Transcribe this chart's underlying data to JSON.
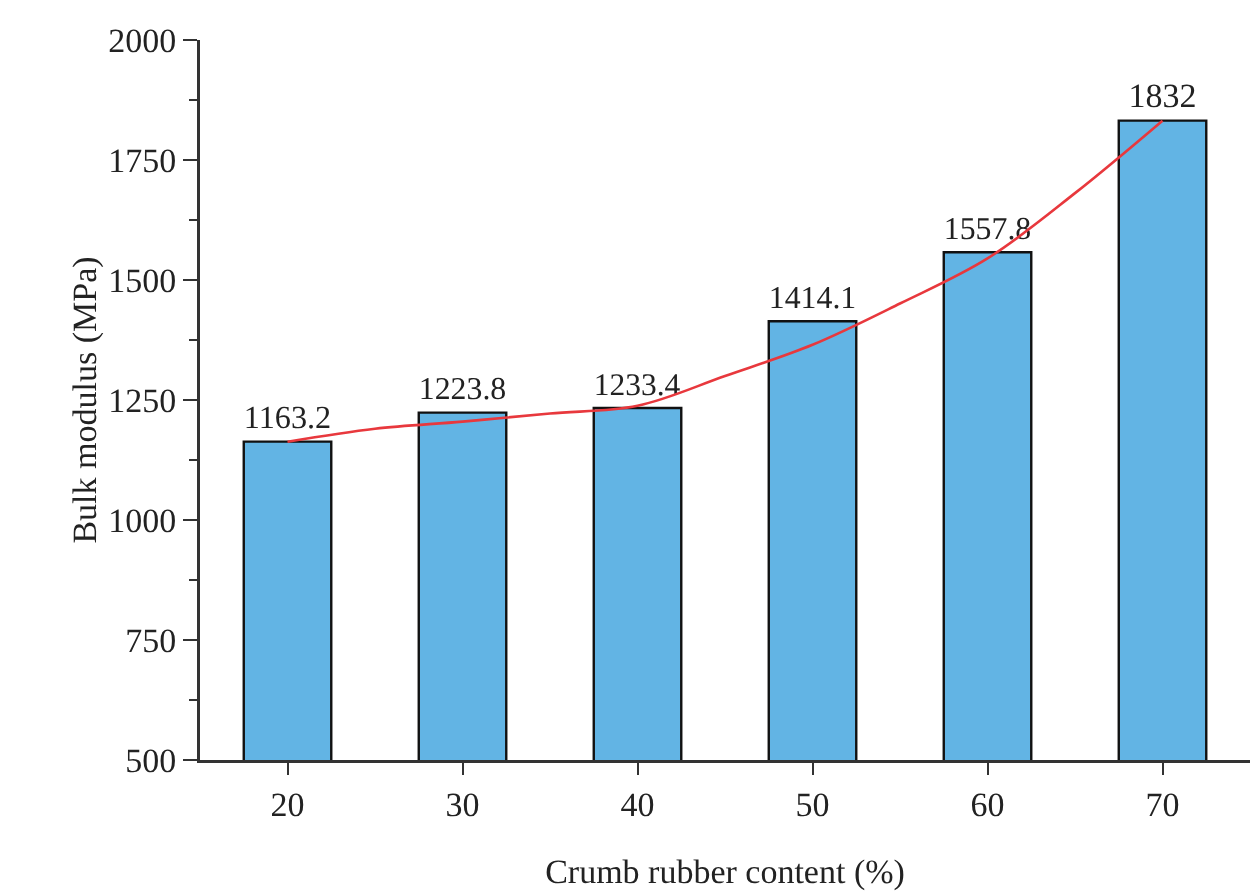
{
  "chart_data": {
    "type": "bar",
    "xlabel": "Crumb rubber content (%)",
    "ylabel": "Bulk modulus (MPa)",
    "x": [
      20,
      30,
      40,
      50,
      60,
      70
    ],
    "series": [
      {
        "color": "#62b4e4",
        "values": [
          1163.2,
          1223.8,
          1233.4,
          1414.1,
          1557.8,
          1832
        ],
        "value_labels": [
          "1163.2",
          "1223.8",
          "1233.4",
          "1414.1",
          "1557.8",
          "1832"
        ]
      },
      {
        "type": "line",
        "color": "#e8383d",
        "x": [
          20,
          25,
          30,
          35,
          40,
          45,
          50,
          55,
          60,
          65,
          70
        ],
        "values": [
          1163,
          1190,
          1205,
          1222,
          1238,
          1300,
          1365,
          1451,
          1545,
          1681,
          1832
        ]
      }
    ],
    "xlim": [
      15,
      75
    ],
    "xticks": [
      20,
      30,
      40,
      50,
      60,
      70
    ],
    "ylim": [
      500,
      2000
    ],
    "yticks": [
      500,
      750,
      1000,
      1250,
      1500,
      1750,
      2000
    ],
    "grid": false
  }
}
